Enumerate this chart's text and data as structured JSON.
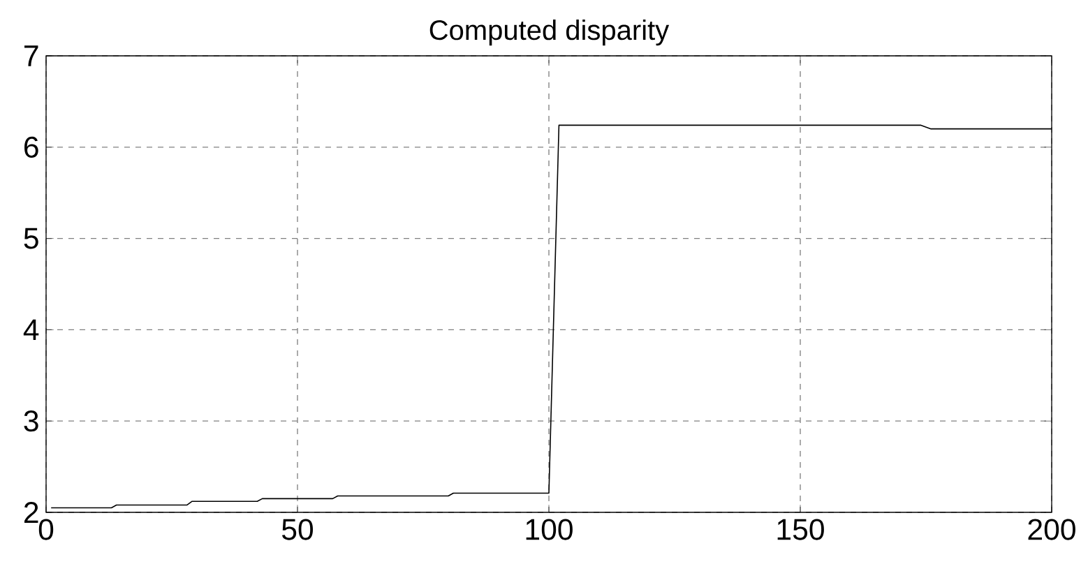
{
  "chart_data": {
    "type": "line",
    "title": "Computed disparity",
    "x": [
      1,
      13,
      14,
      28,
      29,
      42,
      43,
      57,
      58,
      80,
      81,
      100,
      102,
      174,
      176,
      200
    ],
    "series": [
      {
        "color": "#000000",
        "values": [
          2.05,
          2.05,
          2.08,
          2.08,
          2.12,
          2.12,
          2.15,
          2.15,
          2.18,
          2.18,
          2.21,
          2.21,
          6.24,
          6.24,
          6.2,
          6.2
        ]
      }
    ],
    "xlim": [
      0,
      200
    ],
    "ylim": [
      2,
      7
    ],
    "xticks": [
      0,
      50,
      100,
      150,
      200
    ],
    "yticks": [
      2,
      3,
      4,
      5,
      6,
      7
    ],
    "grid": true,
    "line_style": "solid",
    "marker": "none"
  }
}
